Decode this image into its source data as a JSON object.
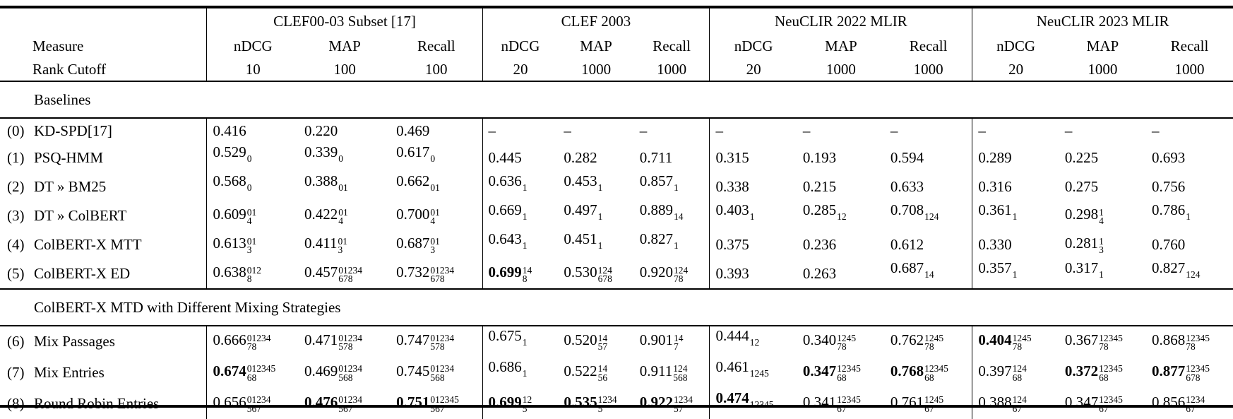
{
  "header": {
    "measure_label": "Measure",
    "cutoff_label": "Rank Cutoff",
    "groups": [
      {
        "label": "CLEF00-03 Subset [17]",
        "metrics": [
          "nDCG",
          "MAP",
          "Recall"
        ],
        "cutoffs": [
          "10",
          "100",
          "100"
        ]
      },
      {
        "label": "CLEF 2003",
        "metrics": [
          "nDCG",
          "MAP",
          "Recall"
        ],
        "cutoffs": [
          "20",
          "1000",
          "1000"
        ]
      },
      {
        "label": "NeuCLIR 2022 MLIR",
        "metrics": [
          "nDCG",
          "MAP",
          "Recall"
        ],
        "cutoffs": [
          "20",
          "1000",
          "1000"
        ]
      },
      {
        "label": "NeuCLIR 2023 MLIR",
        "metrics": [
          "nDCG",
          "MAP",
          "Recall"
        ],
        "cutoffs": [
          "20",
          "1000",
          "1000"
        ]
      }
    ]
  },
  "sections": [
    {
      "title": "Baselines",
      "rows": [
        {
          "id": "(0)",
          "label": "KD-SPD[17]",
          "cells": [
            {
              "v": "0.416"
            },
            {
              "v": "0.220"
            },
            {
              "v": "0.469"
            },
            {
              "v": "–"
            },
            {
              "v": "–"
            },
            {
              "v": "–"
            },
            {
              "v": "–"
            },
            {
              "v": "–"
            },
            {
              "v": "–"
            },
            {
              "v": "–"
            },
            {
              "v": "–"
            },
            {
              "v": "–"
            }
          ]
        },
        {
          "id": "(1)",
          "label": "PSQ-HMM",
          "cells": [
            {
              "v": "0.529",
              "sup": "0"
            },
            {
              "v": "0.339",
              "sup": "0"
            },
            {
              "v": "0.617",
              "sup": "0"
            },
            {
              "v": "0.445"
            },
            {
              "v": "0.282"
            },
            {
              "v": "0.711"
            },
            {
              "v": "0.315"
            },
            {
              "v": "0.193"
            },
            {
              "v": "0.594"
            },
            {
              "v": "0.289"
            },
            {
              "v": "0.225"
            },
            {
              "v": "0.693"
            }
          ]
        },
        {
          "id": "(2)",
          "label": "DT » BM25",
          "cells": [
            {
              "v": "0.568",
              "sup": "0"
            },
            {
              "v": "0.388",
              "sup": "01"
            },
            {
              "v": "0.662",
              "sup": "01"
            },
            {
              "v": "0.636",
              "sup": "1"
            },
            {
              "v": "0.453",
              "sup": "1"
            },
            {
              "v": "0.857",
              "sup": "1"
            },
            {
              "v": "0.338"
            },
            {
              "v": "0.215"
            },
            {
              "v": "0.633"
            },
            {
              "v": "0.316"
            },
            {
              "v": "0.275"
            },
            {
              "v": "0.756"
            }
          ]
        },
        {
          "id": "(3)",
          "label": "DT » ColBERT",
          "cells": [
            {
              "v": "0.609",
              "sup": "01",
              "sub": "4"
            },
            {
              "v": "0.422",
              "sup": "01",
              "sub": "4"
            },
            {
              "v": "0.700",
              "sup": "01",
              "sub": "4"
            },
            {
              "v": "0.669",
              "sup": "1"
            },
            {
              "v": "0.497",
              "sup": "1"
            },
            {
              "v": "0.889",
              "sup": "14"
            },
            {
              "v": "0.403",
              "sup": "1"
            },
            {
              "v": "0.285",
              "sup": "12"
            },
            {
              "v": "0.708",
              "sup": "124"
            },
            {
              "v": "0.361",
              "sup": "1"
            },
            {
              "v": "0.298",
              "sup": "1",
              "sub": "4"
            },
            {
              "v": "0.786",
              "sup": "1"
            }
          ]
        },
        {
          "id": "(4)",
          "label": "ColBERT-X MTT",
          "cells": [
            {
              "v": "0.613",
              "sup": "01",
              "sub": "3"
            },
            {
              "v": "0.411",
              "sup": "01",
              "sub": "3"
            },
            {
              "v": "0.687",
              "sup": "01",
              "sub": "3"
            },
            {
              "v": "0.643",
              "sup": "1"
            },
            {
              "v": "0.451",
              "sup": "1"
            },
            {
              "v": "0.827",
              "sup": "1"
            },
            {
              "v": "0.375"
            },
            {
              "v": "0.236"
            },
            {
              "v": "0.612"
            },
            {
              "v": "0.330"
            },
            {
              "v": "0.281",
              "sup": "1",
              "sub": "3"
            },
            {
              "v": "0.760"
            }
          ]
        },
        {
          "id": "(5)",
          "label": "ColBERT-X ED",
          "cells": [
            {
              "v": "0.638",
              "sup": "012",
              "sub": "8"
            },
            {
              "v": "0.457",
              "sup": "01234",
              "sub": "678"
            },
            {
              "v": "0.732",
              "sup": "01234",
              "sub": "678"
            },
            {
              "v": "0.699",
              "sup": "14",
              "sub": "8",
              "b": true
            },
            {
              "v": "0.530",
              "sup": "124",
              "sub": "678"
            },
            {
              "v": "0.920",
              "sup": "124",
              "sub": "78"
            },
            {
              "v": "0.393"
            },
            {
              "v": "0.263"
            },
            {
              "v": "0.687",
              "sup": "14"
            },
            {
              "v": "0.357",
              "sup": "1"
            },
            {
              "v": "0.317",
              "sup": "1"
            },
            {
              "v": "0.827",
              "sup": "124"
            }
          ]
        }
      ]
    },
    {
      "title": "ColBERT-X MTD with Different Mixing Strategies",
      "rows": [
        {
          "id": "(6)",
          "label": "Mix Passages",
          "cells": [
            {
              "v": "0.666",
              "sup": "01234",
              "sub": "78"
            },
            {
              "v": "0.471",
              "sup": "01234",
              "sub": "578"
            },
            {
              "v": "0.747",
              "sup": "01234",
              "sub": "578"
            },
            {
              "v": "0.675",
              "sup": "1"
            },
            {
              "v": "0.520",
              "sup": "14",
              "sub": "57"
            },
            {
              "v": "0.901",
              "sup": "14",
              "sub": "7"
            },
            {
              "v": "0.444",
              "sup": "12"
            },
            {
              "v": "0.340",
              "sup": "1245",
              "sub": "78"
            },
            {
              "v": "0.762",
              "sup": "1245",
              "sub": "78"
            },
            {
              "v": "0.404",
              "sup": "1245",
              "sub": "78",
              "b": true
            },
            {
              "v": "0.367",
              "sup": "12345",
              "sub": "78"
            },
            {
              "v": "0.868",
              "sup": "12345",
              "sub": "78"
            }
          ]
        },
        {
          "id": "(7)",
          "label": "Mix Entries",
          "cells": [
            {
              "v": "0.674",
              "sup": "012345",
              "sub": "68",
              "b": true
            },
            {
              "v": "0.469",
              "sup": "01234",
              "sub": "568"
            },
            {
              "v": "0.745",
              "sup": "01234",
              "sub": "568"
            },
            {
              "v": "0.686",
              "sup": "1"
            },
            {
              "v": "0.522",
              "sup": "14",
              "sub": "56"
            },
            {
              "v": "0.911",
              "sup": "124",
              "sub": "568"
            },
            {
              "v": "0.461",
              "sup": "1245"
            },
            {
              "v": "0.347",
              "sup": "12345",
              "sub": "68",
              "b": true
            },
            {
              "v": "0.768",
              "sup": "12345",
              "sub": "68",
              "b": true
            },
            {
              "v": "0.397",
              "sup": "124",
              "sub": "68"
            },
            {
              "v": "0.372",
              "sup": "12345",
              "sub": "68",
              "b": true
            },
            {
              "v": "0.877",
              "sup": "12345",
              "sub": "678",
              "b": true
            }
          ]
        },
        {
          "id": "(8)",
          "label": "Round Robin Entries",
          "cells": [
            {
              "v": "0.656",
              "sup": "01234",
              "sub": "567"
            },
            {
              "v": "0.476",
              "sup": "01234",
              "sub": "567",
              "b": true
            },
            {
              "v": "0.751",
              "sup": "012345",
              "sub": "567",
              "b": true
            },
            {
              "v": "0.699",
              "sup": "12",
              "sub": "5",
              "b": true
            },
            {
              "v": "0.535",
              "sup": "1234",
              "sub": "5",
              "b": true
            },
            {
              "v": "0.922",
              "sup": "1234",
              "sub": "57",
              "b": true
            },
            {
              "v": "0.474",
              "sup": "12345",
              "b": true
            },
            {
              "v": "0.341",
              "sup": "12345",
              "sub": "67"
            },
            {
              "v": "0.761",
              "sup": "1245",
              "sub": "67"
            },
            {
              "v": "0.388",
              "sup": "124",
              "sub": "67"
            },
            {
              "v": "0.347",
              "sup": "12345",
              "sub": "67"
            },
            {
              "v": "0.856",
              "sup": "1234",
              "sub": "67"
            }
          ]
        }
      ]
    }
  ]
}
